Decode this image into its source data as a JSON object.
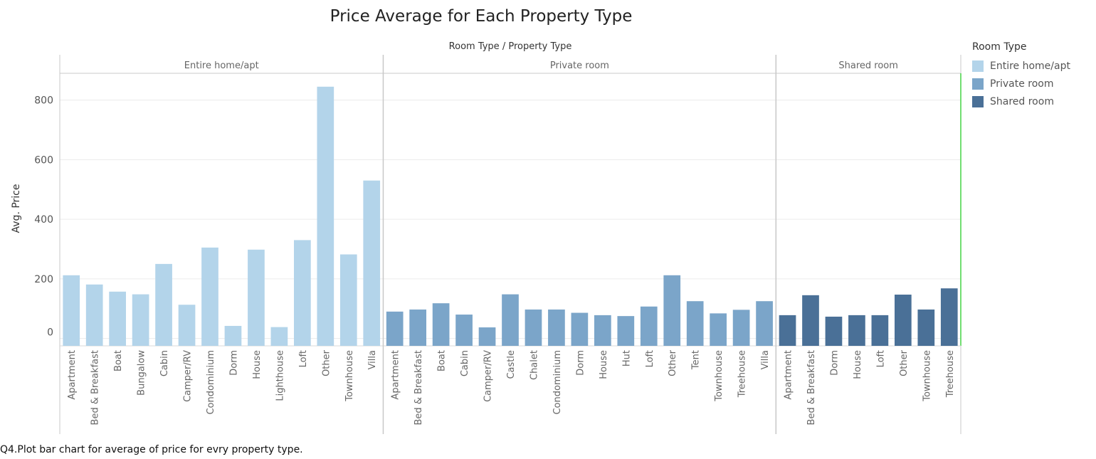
{
  "chart_data": {
    "type": "bar",
    "title": "Price Average  for Each Property Type",
    "header_label": "Room Type  /  Property Type",
    "ylabel": "Avg. Price",
    "ylim": [
      -25,
      890
    ],
    "yticks": [
      0,
      200,
      400,
      600,
      800
    ],
    "grid": true,
    "legend": {
      "title": "Room Type",
      "position": "right",
      "items": [
        {
          "label": "Entire home/apt",
          "color": "#b3d4ea"
        },
        {
          "label": "Private room",
          "color": "#7ba5c9"
        },
        {
          "label": "Shared room",
          "color": "#4a7097"
        }
      ]
    },
    "groups": [
      {
        "name": "Entire home/apt",
        "color": "#b3d4ea",
        "categories": [
          "Apartment",
          "Bed & Breakfast",
          "Boat",
          "Bungalow",
          "Cabin",
          "Camper/RV",
          "Condominium",
          "Dorm",
          "House",
          "Lighthouse",
          "Loft",
          "Other",
          "Townhouse",
          "Villa"
        ],
        "values": [
          212,
          181,
          157,
          148,
          250,
          113,
          305,
          42,
          298,
          38,
          330,
          845,
          282,
          530
        ]
      },
      {
        "name": "Private room",
        "color": "#7ba5c9",
        "categories": [
          "Apartment",
          "Bed & Breakfast",
          "Boat",
          "Cabin",
          "Camper/RV",
          "Castle",
          "Chalet",
          "Condominium",
          "Dorm",
          "House",
          "Hut",
          "Loft",
          "Other",
          "Tent",
          "Townhouse",
          "Treehouse",
          "Villa"
        ],
        "values": [
          90,
          97,
          118,
          80,
          37,
          148,
          97,
          97,
          86,
          78,
          75,
          107,
          212,
          125,
          84,
          96,
          125
        ]
      },
      {
        "name": "Shared room",
        "color": "#4a7097",
        "categories": [
          "Apartment",
          "Bed & Breakfast",
          "Dorm",
          "House",
          "Loft",
          "Other",
          "Townhouse",
          "Treehouse"
        ],
        "values": [
          78,
          145,
          73,
          78,
          78,
          147,
          97,
          168
        ]
      }
    ]
  },
  "caption": "Q4.Plot bar chart for average of price  for evry property type."
}
